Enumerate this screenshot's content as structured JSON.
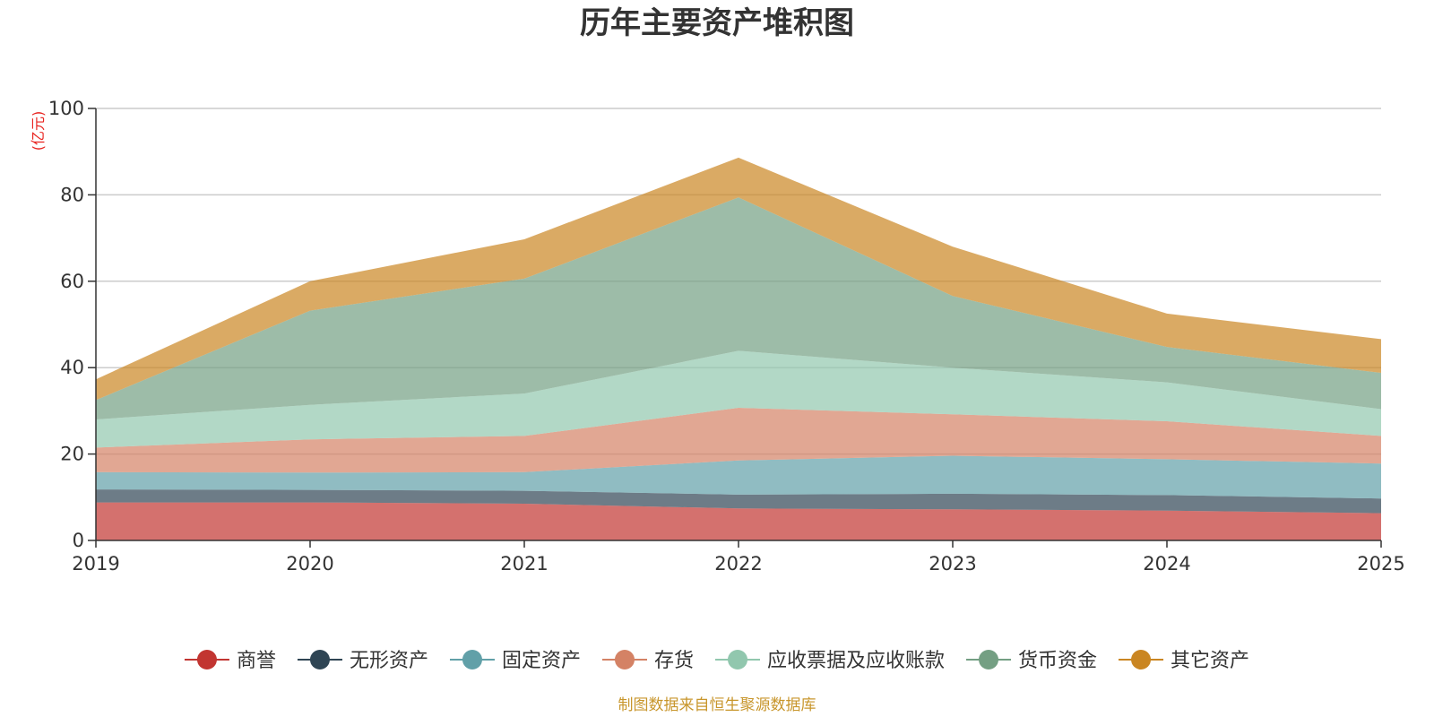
{
  "chart_data": {
    "type": "area",
    "stacked": true,
    "title": "历年主要资产堆积图",
    "ylabel": "(亿元)",
    "xlabel": "",
    "ylim": [
      0,
      100
    ],
    "yticks": [
      0,
      20,
      40,
      60,
      80,
      100
    ],
    "grid": true,
    "legend_position": "bottom",
    "categories": [
      "2019",
      "2020",
      "2021",
      "2022",
      "2023",
      "2024",
      "2025"
    ],
    "series": [
      {
        "name": "商誉",
        "color": "#c23531",
        "values": [
          8.8,
          8.8,
          8.5,
          7.4,
          7.2,
          6.9,
          6.3
        ]
      },
      {
        "name": "无形资产",
        "color": "#2f4554",
        "values": [
          3.0,
          2.9,
          3.0,
          3.2,
          3.6,
          3.6,
          3.4
        ]
      },
      {
        "name": "固定资产",
        "color": "#61a0a8",
        "values": [
          4.0,
          4.0,
          4.3,
          7.9,
          8.8,
          8.3,
          8.1
        ]
      },
      {
        "name": "存货",
        "color": "#d48265",
        "values": [
          5.7,
          7.7,
          8.4,
          12.2,
          9.6,
          8.8,
          6.4
        ]
      },
      {
        "name": "应收票据及应收账款",
        "color": "#91c7ae",
        "values": [
          6.5,
          8.0,
          9.8,
          13.2,
          10.8,
          9.0,
          6.2
        ]
      },
      {
        "name": "货币资金",
        "color": "#749f83",
        "values": [
          4.5,
          21.8,
          26.6,
          35.5,
          16.6,
          8.2,
          8.4
        ]
      },
      {
        "name": "其它资产",
        "color": "#ca8622",
        "values": [
          4.8,
          6.8,
          9.1,
          9.2,
          11.4,
          7.7,
          7.8
        ]
      }
    ],
    "source": "制图数据来自恒生聚源数据库"
  }
}
